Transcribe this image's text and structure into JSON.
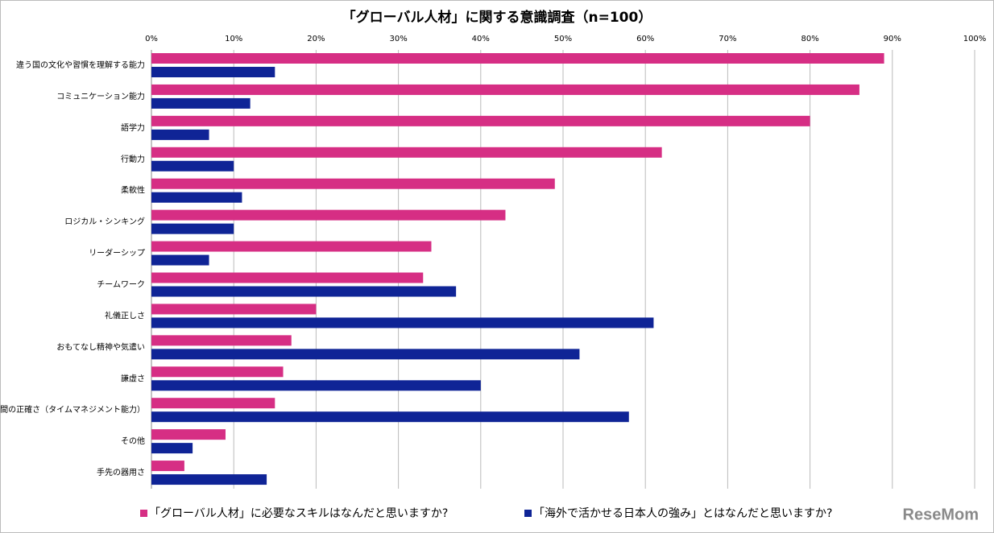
{
  "chart_data": {
    "type": "bar",
    "orientation": "horizontal",
    "title": "「グローバル人材」に関する意識調査（n=100）",
    "categories": [
      "違う国の文化や習慣を理解する能力",
      "コミュニケーション能力",
      "語学力",
      "行動力",
      "柔軟性",
      "ロジカル・シンキング",
      "リーダーシップ",
      "チームワーク",
      "礼儀正しさ",
      "おもてなし精神や気遣い",
      "謙虚さ",
      "時間の正確さ（タイムマネジメント能力）",
      "その他",
      "手先の器用さ"
    ],
    "series": [
      {
        "name": "「グローバル人材」に必要なスキルはなんだと思いますか?",
        "color": "#d62e84",
        "values": [
          89,
          86,
          80,
          62,
          49,
          43,
          34,
          33,
          20,
          17,
          16,
          15,
          9,
          4
        ]
      },
      {
        "name": "「海外で活かせる日本人の強み」とはなんだと思いますか?",
        "color": "#0f2496",
        "values": [
          15,
          12,
          7,
          10,
          11,
          10,
          7,
          37,
          61,
          52,
          40,
          58,
          5,
          14
        ]
      }
    ],
    "xlim": [
      0,
      100
    ],
    "xticks": [
      {
        "value": 0,
        "label": "0%"
      },
      {
        "value": 10,
        "label": "10%"
      },
      {
        "value": 20,
        "label": "20%"
      },
      {
        "value": 30,
        "label": "30%"
      },
      {
        "value": 40,
        "label": "40%"
      },
      {
        "value": 50,
        "label": "50%"
      },
      {
        "value": 60,
        "label": "60%"
      },
      {
        "value": 70,
        "label": "70%"
      },
      {
        "value": 80,
        "label": "80%"
      },
      {
        "value": 90,
        "label": "90%"
      },
      {
        "value": 100,
        "label": "100%"
      }
    ],
    "grid": true,
    "legend": "bottom",
    "watermark": "ReseMom"
  }
}
